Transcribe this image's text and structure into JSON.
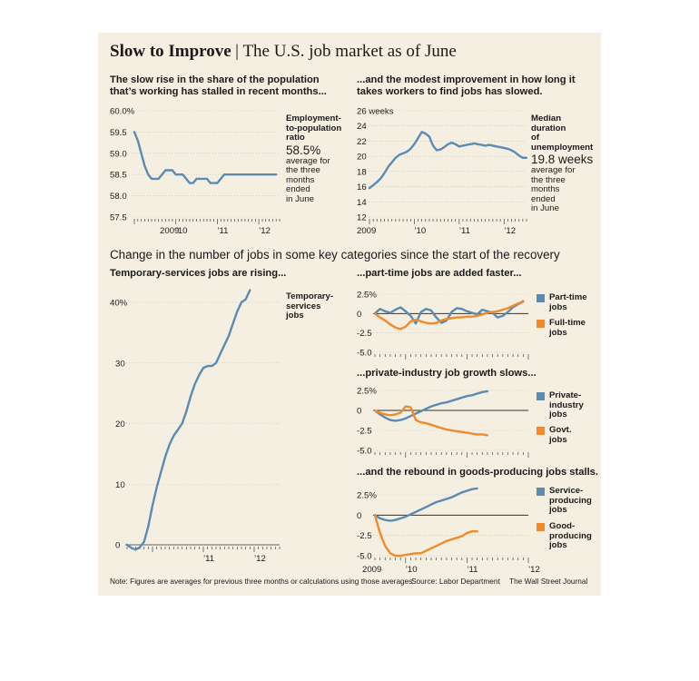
{
  "header": {
    "title_bold": "Slow to Improve",
    "separator": "|",
    "title": "The U.S. job market as of June"
  },
  "panel_top_left": {
    "subtitle_line1": "The slow rise in the share of the population",
    "subtitle_line2": "that’s working has stalled in recent months...",
    "label_lines": [
      "Employment-",
      "to-population",
      "ratio"
    ],
    "value": "58.5%",
    "desc_lines": [
      "average for",
      "the three",
      "months",
      "ended",
      "in June"
    ]
  },
  "panel_top_right": {
    "subtitle_line1": "...and the modest improvement in how long it",
    "subtitle_line2": "takes workers to find jobs has slowed.",
    "label_lines": [
      "Median",
      "duration",
      "of",
      "unemployment"
    ],
    "value": "19.8 weeks",
    "desc_lines": [
      "average for",
      "the three",
      "months",
      "ended",
      "in June"
    ]
  },
  "section_heading": "Change in the number of jobs in some key categories since the start of the recovery",
  "panel_temp": {
    "subtitle": "Temporary-services jobs are rising...",
    "label_lines": [
      "Temporary-",
      "services",
      "jobs"
    ]
  },
  "panel_parttime": {
    "subtitle": "...part-time jobs are added faster...",
    "legend_a": [
      "Part-time",
      "jobs"
    ],
    "legend_b": [
      "Full-time",
      "jobs"
    ]
  },
  "panel_private": {
    "subtitle": "...private-industry job growth slows...",
    "legend_a": [
      "Private-",
      "industry",
      "jobs"
    ],
    "legend_b": [
      "Govt.",
      "jobs"
    ]
  },
  "panel_goods": {
    "subtitle": "...and the rebound in goods-producing jobs stalls.",
    "legend_a": [
      "Service-",
      "producing",
      "jobs"
    ],
    "legend_b": [
      "Good-",
      "producing",
      "jobs"
    ]
  },
  "footer": {
    "note": "Note: Figures are averages for previous three months or calculations using those averages",
    "source": "Source: Labor Department",
    "credit": "The Wall Street Journal"
  },
  "colors": {
    "blue": "#5b8bb3",
    "orange": "#f08a2c",
    "panel": "#f4efe1"
  },
  "chart_data": [
    {
      "id": "emp-pop",
      "type": "line",
      "x_start": 2009.0,
      "x_step": 0.0833,
      "x_ticks": [
        {
          "pos": 2009.92,
          "label": "2009"
        },
        {
          "pos": 2010.0,
          "label": "’10"
        },
        {
          "pos": 2011.0,
          "label": "’11"
        },
        {
          "pos": 2012.0,
          "label": "’12"
        }
      ],
      "ylim": [
        57.5,
        60.0
      ],
      "y_ticks": [
        {
          "v": 60.0,
          "label": "60.0%"
        },
        {
          "v": 59.5,
          "label": "59.5"
        },
        {
          "v": 59.0,
          "label": "59.0"
        },
        {
          "v": 58.5,
          "label": "58.5"
        },
        {
          "v": 58.0,
          "label": "58.0"
        },
        {
          "v": 57.5,
          "label": "57.5"
        }
      ],
      "series": [
        {
          "color": "blue",
          "values": [
            59.5,
            59.3,
            59.0,
            58.7,
            58.5,
            58.4,
            58.4,
            58.4,
            58.5,
            58.6,
            58.6,
            58.6,
            58.5,
            58.5,
            58.5,
            58.4,
            58.3,
            58.3,
            58.4,
            58.4,
            58.4,
            58.4,
            58.3,
            58.3,
            58.3,
            58.4,
            58.5,
            58.5,
            58.5,
            58.5,
            58.5,
            58.5,
            58.5,
            58.5,
            58.5,
            58.5,
            58.5,
            58.5,
            58.5,
            58.5,
            58.5,
            58.5
          ]
        }
      ]
    },
    {
      "id": "duration",
      "type": "line",
      "x_start": 2009.0,
      "x_step": 0.0833,
      "x_ticks": [
        {
          "pos": 2009.0,
          "label": "2009"
        },
        {
          "pos": 2010.0,
          "label": "’10"
        },
        {
          "pos": 2011.0,
          "label": "’11"
        },
        {
          "pos": 2012.0,
          "label": "’12"
        }
      ],
      "ylim": [
        12,
        26
      ],
      "y_ticks": [
        {
          "v": 26,
          "label": "26 weeks"
        },
        {
          "v": 24,
          "label": "24"
        },
        {
          "v": 22,
          "label": "22"
        },
        {
          "v": 20,
          "label": "20"
        },
        {
          "v": 18,
          "label": "18"
        },
        {
          "v": 16,
          "label": "16"
        },
        {
          "v": 14,
          "label": "14"
        },
        {
          "v": 12,
          "label": "12"
        }
      ],
      "series": [
        {
          "color": "blue",
          "values": [
            15.8,
            16.2,
            16.6,
            17.1,
            17.8,
            18.6,
            19.2,
            19.8,
            20.2,
            20.4,
            20.6,
            21.0,
            21.6,
            22.4,
            23.2,
            23.0,
            22.6,
            21.4,
            20.8,
            20.9,
            21.2,
            21.6,
            21.8,
            21.6,
            21.3,
            21.4,
            21.5,
            21.6,
            21.7,
            21.6,
            21.5,
            21.4,
            21.5,
            21.4,
            21.3,
            21.2,
            21.1,
            21.0,
            20.8,
            20.5,
            20.1,
            19.8,
            19.8
          ]
        }
      ]
    },
    {
      "id": "temp",
      "type": "line",
      "x_start": 2009.5,
      "x_step": 0.0833,
      "x_ticks": [
        {
          "pos": 2011.0,
          "label": "’11"
        },
        {
          "pos": 2012.0,
          "label": "’12"
        }
      ],
      "ylim": [
        0,
        40
      ],
      "y_ticks": [
        {
          "v": 40,
          "label": "40%"
        },
        {
          "v": 30,
          "label": "30"
        },
        {
          "v": 20,
          "label": "20"
        },
        {
          "v": 10,
          "label": "10"
        },
        {
          "v": 0,
          "label": "0"
        }
      ],
      "series": [
        {
          "color": "blue",
          "values": [
            0,
            -0.5,
            -0.8,
            -0.4,
            0.5,
            3.0,
            6.5,
            9.5,
            12.0,
            14.5,
            16.5,
            18.0,
            19.0,
            20.0,
            22.0,
            24.5,
            26.5,
            28.0,
            29.2,
            29.5,
            29.5,
            30.0,
            31.5,
            33.0,
            34.5,
            36.5,
            38.5,
            40.0,
            40.5,
            42.0
          ]
        }
      ]
    },
    {
      "id": "parttime",
      "type": "line",
      "x_start": 2009.5,
      "x_step": 0.0833,
      "ylim": [
        -5.0,
        2.5
      ],
      "y_ticks": [
        {
          "v": 2.5,
          "label": "2.5%"
        },
        {
          "v": 0,
          "label": "0"
        },
        {
          "v": -2.5,
          "label": "-2.5"
        },
        {
          "v": -5.0,
          "label": "-5.0"
        }
      ],
      "series": [
        {
          "name": "Part-time jobs",
          "color": "blue",
          "values": [
            0,
            0.6,
            0.3,
            0.1,
            0.5,
            0.8,
            0.3,
            -0.3,
            -1.3,
            0.2,
            0.6,
            0.4,
            -0.5,
            -1.2,
            -0.9,
            0.2,
            0.7,
            0.6,
            0.3,
            0.1,
            -0.1,
            0.5,
            0.3,
            0.1,
            -0.5,
            -0.3,
            0.2,
            0.8,
            1.2,
            1.6
          ]
        },
        {
          "name": "Full-time jobs",
          "color": "orange",
          "values": [
            0,
            -0.5,
            -0.9,
            -1.4,
            -1.8,
            -2.0,
            -1.7,
            -1.0,
            -0.8,
            -1.0,
            -1.2,
            -1.3,
            -1.2,
            -0.9,
            -0.7,
            -0.6,
            -0.5,
            -0.5,
            -0.4,
            -0.4,
            -0.3,
            -0.1,
            0.1,
            0.2,
            0.3,
            0.5,
            0.7,
            1.0,
            1.3,
            1.5
          ]
        }
      ]
    },
    {
      "id": "private",
      "type": "line",
      "x_start": 2009.5,
      "x_step": 0.0833,
      "ylim": [
        -5.0,
        2.5
      ],
      "y_ticks": [
        {
          "v": 2.5,
          "label": "2.5%"
        },
        {
          "v": 0,
          "label": "0"
        },
        {
          "v": -2.5,
          "label": "-2.5"
        },
        {
          "v": -5.0,
          "label": "-5.0"
        }
      ],
      "series": [
        {
          "name": "Private-industry jobs",
          "color": "blue",
          "values": [
            0,
            -0.5,
            -0.9,
            -1.2,
            -1.3,
            -1.2,
            -1.0,
            -0.7,
            -0.4,
            -0.1,
            0.2,
            0.5,
            0.7,
            0.9,
            1.0,
            1.2,
            1.4,
            1.6,
            1.8,
            1.9,
            2.1,
            2.3,
            2.4
          ]
        },
        {
          "name": "Govt. jobs",
          "color": "orange",
          "values": [
            0,
            -0.3,
            -0.5,
            -0.6,
            -0.5,
            -0.3,
            0.5,
            0.4,
            -1.2,
            -1.5,
            -1.6,
            -1.8,
            -2.0,
            -2.2,
            -2.4,
            -2.5,
            -2.6,
            -2.7,
            -2.8,
            -2.9,
            -3.0,
            -3.0,
            -3.1
          ]
        }
      ]
    },
    {
      "id": "goods",
      "type": "line",
      "x_start": 2009.5,
      "x_step": 0.0833,
      "x_ticks": [
        {
          "pos": 2009.5,
          "label": "2009"
        },
        {
          "pos": 2010.0,
          "label": "’10"
        },
        {
          "pos": 2011.0,
          "label": "’11"
        },
        {
          "pos": 2012.0,
          "label": "’12"
        }
      ],
      "ylim": [
        -5.0,
        2.5
      ],
      "y_ticks": [
        {
          "v": 2.5,
          "label": "2.5%"
        },
        {
          "v": 0,
          "label": "0"
        },
        {
          "v": -2.5,
          "label": "-2.5"
        },
        {
          "v": -5.0,
          "label": "-5.0"
        }
      ],
      "series": [
        {
          "name": "Service-producing jobs",
          "color": "blue",
          "values": [
            0,
            -0.4,
            -0.6,
            -0.7,
            -0.6,
            -0.4,
            -0.2,
            0.1,
            0.4,
            0.7,
            1.0,
            1.3,
            1.6,
            1.8,
            2.0,
            2.2,
            2.5,
            2.8,
            3.0,
            3.2,
            3.3
          ]
        },
        {
          "name": "Good-producing jobs",
          "color": "orange",
          "values": [
            0,
            -2.2,
            -3.8,
            -4.7,
            -5.0,
            -5.0,
            -4.9,
            -4.8,
            -4.7,
            -4.7,
            -4.4,
            -4.1,
            -3.8,
            -3.5,
            -3.2,
            -3.0,
            -2.8,
            -2.6,
            -2.2,
            -2.0,
            -2.0
          ]
        }
      ]
    }
  ]
}
